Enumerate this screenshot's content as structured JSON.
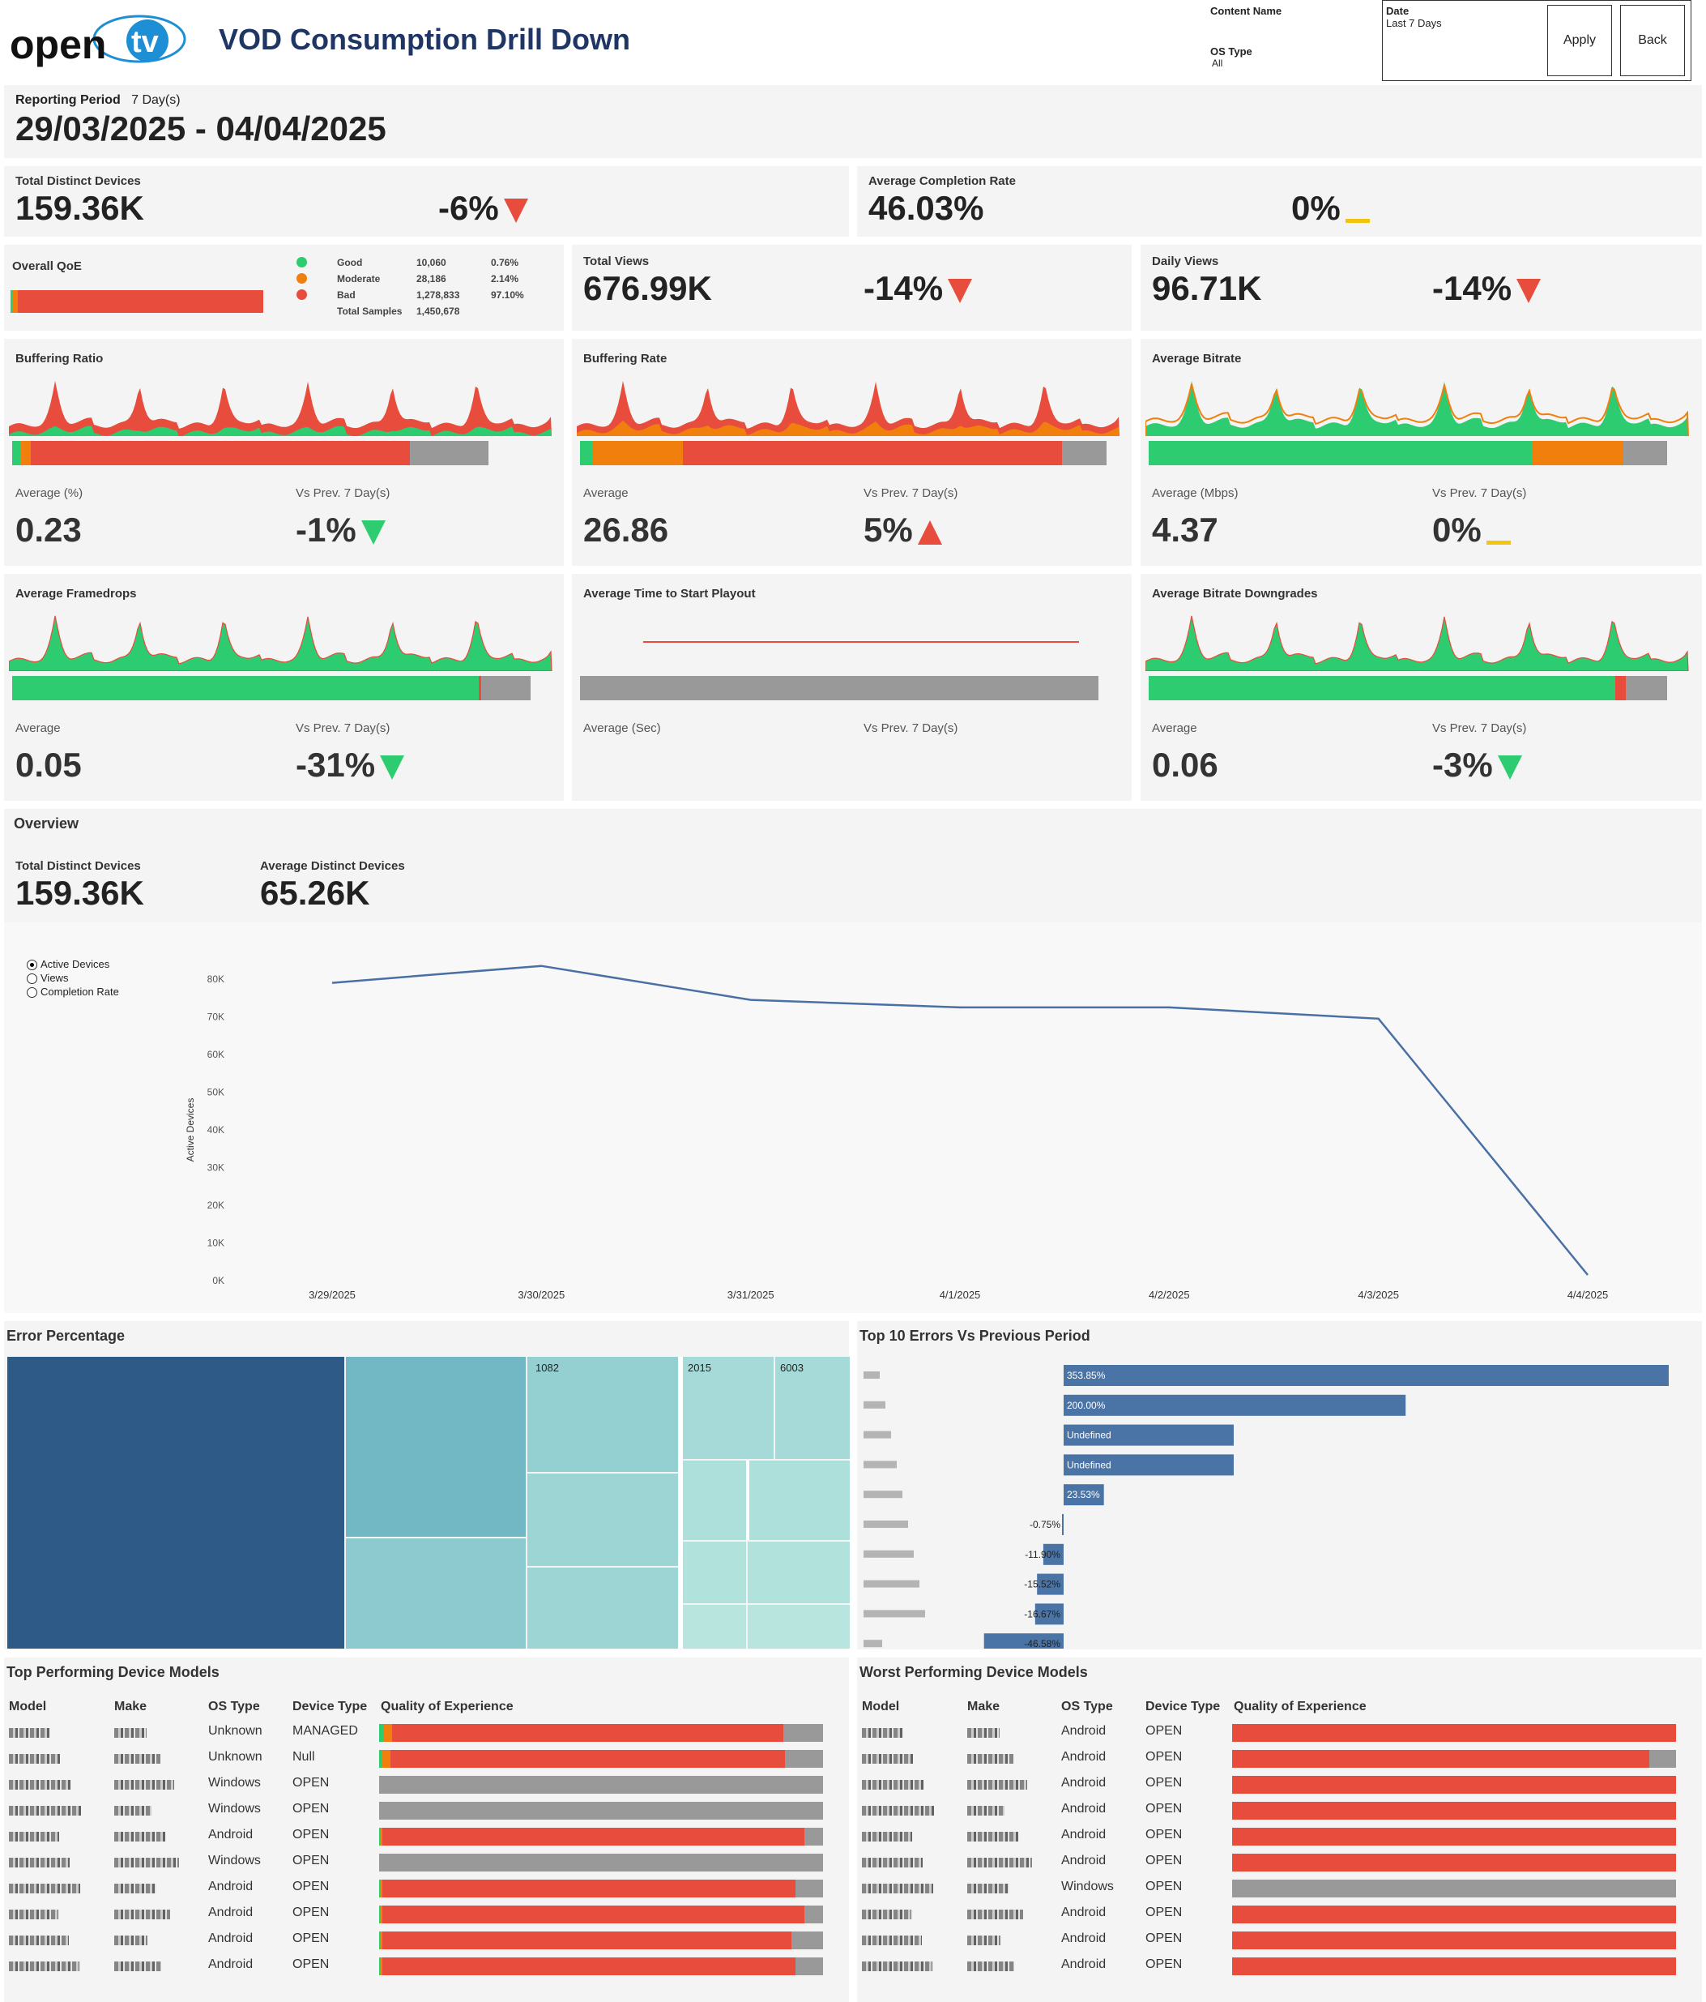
{
  "header": {
    "logo": "opentv",
    "title": "VOD Consumption Drill Down",
    "filters": {
      "content_name_label": "Content Name",
      "os_type_label": "OS Type",
      "os_type_value": "All",
      "date_label": "Date",
      "date_value": "Last 7 Days"
    },
    "apply": "Apply",
    "back": "Back"
  },
  "period": {
    "label": "Reporting Period",
    "days": "7 Day(s)",
    "range": "29/03/2025 - 04/04/2025"
  },
  "kpi": {
    "devices": {
      "label": "Total Distinct Devices",
      "value": "159.36K",
      "delta": "-6%"
    },
    "completion": {
      "label": "Average Completion Rate",
      "value": "46.03%",
      "delta": "0%"
    },
    "views": {
      "label": "Total Views",
      "value": "676.99K",
      "delta": "-14%"
    },
    "daily": {
      "label": "Daily Views",
      "value": "96.71K",
      "delta": "-14%"
    }
  },
  "qoe": {
    "label": "Overall QoE",
    "rows": [
      {
        "name": "Good",
        "count": "10,060",
        "pct": "0.76%",
        "color": "#2ecc71"
      },
      {
        "name": "Moderate",
        "count": "28,186",
        "pct": "2.14%",
        "color": "#f07f0e"
      },
      {
        "name": "Bad",
        "count": "1,278,833",
        "pct": "97.10%",
        "color": "#e74c3c"
      }
    ],
    "total_label": "Total Samples",
    "total": "1,450,678",
    "bar": {
      "good": 0.76,
      "moderate": 2.14,
      "bad": 97.1
    }
  },
  "metrics": [
    {
      "title": "Buffering Ratio",
      "avg_label": "Average (%)",
      "avg": "0.23",
      "vs_label": "Vs Prev. 7 Day(s)",
      "delta": "-1%",
      "dir": "down-good",
      "bar": [
        0.015,
        0.02,
        0.72,
        0.15
      ]
    },
    {
      "title": "Buffering Rate",
      "avg_label": "Average",
      "avg": "26.86",
      "vs_label": "Vs Prev. 7 Day(s)",
      "delta": "5%",
      "dir": "up-bad",
      "bar": [
        0.025,
        0.17,
        0.72,
        0.085
      ]
    },
    {
      "title": "Average Bitrate",
      "avg_label": "Average (Mbps)",
      "avg": "4.37",
      "vs_label": "Vs Prev. 7 Day(s)",
      "delta": "0%",
      "dir": "flat",
      "bar": [
        0.74,
        0.175,
        0,
        0.085
      ]
    },
    {
      "title": "Average Framedrops",
      "avg_label": "Average",
      "avg": "0.05",
      "vs_label": "Vs Prev. 7 Day(s)",
      "delta": "-31%",
      "dir": "down-good",
      "bar": [
        0.9,
        0,
        0.005,
        0.095
      ]
    },
    {
      "title": "Average Time to Start Playout",
      "avg_label": "Average (Sec)",
      "avg": "",
      "vs_label": "Vs Prev. 7 Day(s)",
      "delta": "",
      "dir": "none",
      "bar": [
        0,
        0,
        0,
        1
      ]
    },
    {
      "title": "Average Bitrate Downgrades",
      "avg_label": "Average",
      "avg": "0.06",
      "vs_label": "Vs Prev. 7 Day(s)",
      "delta": "-3%",
      "dir": "down-good",
      "bar": [
        0.9,
        0,
        0.02,
        0.08
      ]
    }
  ],
  "overview": {
    "title": "Overview",
    "devices_label": "Total Distinct Devices",
    "devices": "159.36K",
    "avg_label": "Average Distinct Devices",
    "avg": "65.26K",
    "radio": [
      "Active Devices",
      "Views",
      "Completion Rate"
    ],
    "selected": 0
  },
  "chart_data": {
    "type": "line",
    "title": "",
    "xlabel": "",
    "ylabel": "Active Devices",
    "categories": [
      "3/29/2025",
      "3/30/2025",
      "3/31/2025",
      "4/1/2025",
      "4/2/2025",
      "4/3/2025",
      "4/4/2025"
    ],
    "values": [
      79000,
      83500,
      74500,
      72500,
      72500,
      69500,
      1500
    ],
    "ylim": [
      0,
      80000
    ],
    "yticks": [
      "0K",
      "10K",
      "20K",
      "30K",
      "40K",
      "50K",
      "60K",
      "70K",
      "80K"
    ],
    "color": "#4a6fa5"
  },
  "errors": {
    "title": "Error Percentage",
    "top10_title": "Top 10 Errors Vs Previous Period",
    "top10": [
      {
        "label": "353.85%",
        "v": 353.85
      },
      {
        "label": "200.00%",
        "v": 200
      },
      {
        "label": "Undefined",
        "v": 100
      },
      {
        "label": "Undefined",
        "v": 100
      },
      {
        "label": "23.53%",
        "v": 23.53
      },
      {
        "label": "-0.75%",
        "v": -0.75
      },
      {
        "label": "-11.90%",
        "v": -11.9
      },
      {
        "label": "-15.52%",
        "v": -15.52
      },
      {
        "label": "-16.67%",
        "v": -16.67
      },
      {
        "label": "-46.58%",
        "v": -46.58
      }
    ],
    "tree_labels": [
      "1082",
      "2015",
      "6003"
    ]
  },
  "top_models": {
    "title": "Top Performing Device Models",
    "headers": [
      "Model",
      "Make",
      "OS Type",
      "Device Type",
      "Quality of Experience"
    ],
    "rows": [
      {
        "os": "Unknown",
        "type": "MANAGED",
        "q": [
          0.01,
          0.02,
          0.88,
          0.09
        ]
      },
      {
        "os": "Unknown",
        "type": "Null",
        "q": [
          0.005,
          0.02,
          0.89,
          0.085
        ]
      },
      {
        "os": "Windows",
        "type": "OPEN",
        "q": [
          0,
          0,
          0,
          1
        ]
      },
      {
        "os": "Windows",
        "type": "OPEN",
        "q": [
          0,
          0,
          0,
          1
        ]
      },
      {
        "os": "Android",
        "type": "OPEN",
        "q": [
          0.003,
          0.005,
          0.95,
          0.042
        ]
      },
      {
        "os": "Windows",
        "type": "OPEN",
        "q": [
          0,
          0,
          0,
          1
        ]
      },
      {
        "os": "Android",
        "type": "OPEN",
        "q": [
          0.003,
          0.005,
          0.93,
          0.062
        ]
      },
      {
        "os": "Android",
        "type": "OPEN",
        "q": [
          0.003,
          0.005,
          0.95,
          0.042
        ]
      },
      {
        "os": "Android",
        "type": "OPEN",
        "q": [
          0.003,
          0.005,
          0.92,
          0.072
        ]
      },
      {
        "os": "Android",
        "type": "OPEN",
        "q": [
          0.003,
          0.005,
          0.93,
          0.062
        ]
      }
    ]
  },
  "worst_models": {
    "title": "Worst Performing Device Models",
    "headers": [
      "Model",
      "Make",
      "OS Type",
      "Device Type",
      "Quality of Experience"
    ],
    "rows": [
      {
        "os": "Android",
        "type": "OPEN",
        "q": [
          0,
          0,
          1,
          0
        ]
      },
      {
        "os": "Android",
        "type": "OPEN",
        "q": [
          0,
          0,
          0.94,
          0.06
        ]
      },
      {
        "os": "Android",
        "type": "OPEN",
        "q": [
          0,
          0,
          1,
          0
        ]
      },
      {
        "os": "Android",
        "type": "OPEN",
        "q": [
          0,
          0,
          1,
          0
        ]
      },
      {
        "os": "Android",
        "type": "OPEN",
        "q": [
          0,
          0,
          1,
          0
        ]
      },
      {
        "os": "Android",
        "type": "OPEN",
        "q": [
          0,
          0,
          1,
          0
        ]
      },
      {
        "os": "Windows",
        "type": "OPEN",
        "q": [
          0,
          0,
          0,
          1
        ]
      },
      {
        "os": "Android",
        "type": "OPEN",
        "q": [
          0,
          0,
          1,
          0
        ]
      },
      {
        "os": "Android",
        "type": "OPEN",
        "q": [
          0,
          0,
          1,
          0
        ]
      },
      {
        "os": "Android",
        "type": "OPEN",
        "q": [
          0,
          0,
          1,
          0
        ]
      }
    ]
  },
  "colors": {
    "good": "#2ecc71",
    "moderate": "#f07f0e",
    "bad": "#e74c3c",
    "na": "#999999",
    "navy": "#1f3564"
  }
}
